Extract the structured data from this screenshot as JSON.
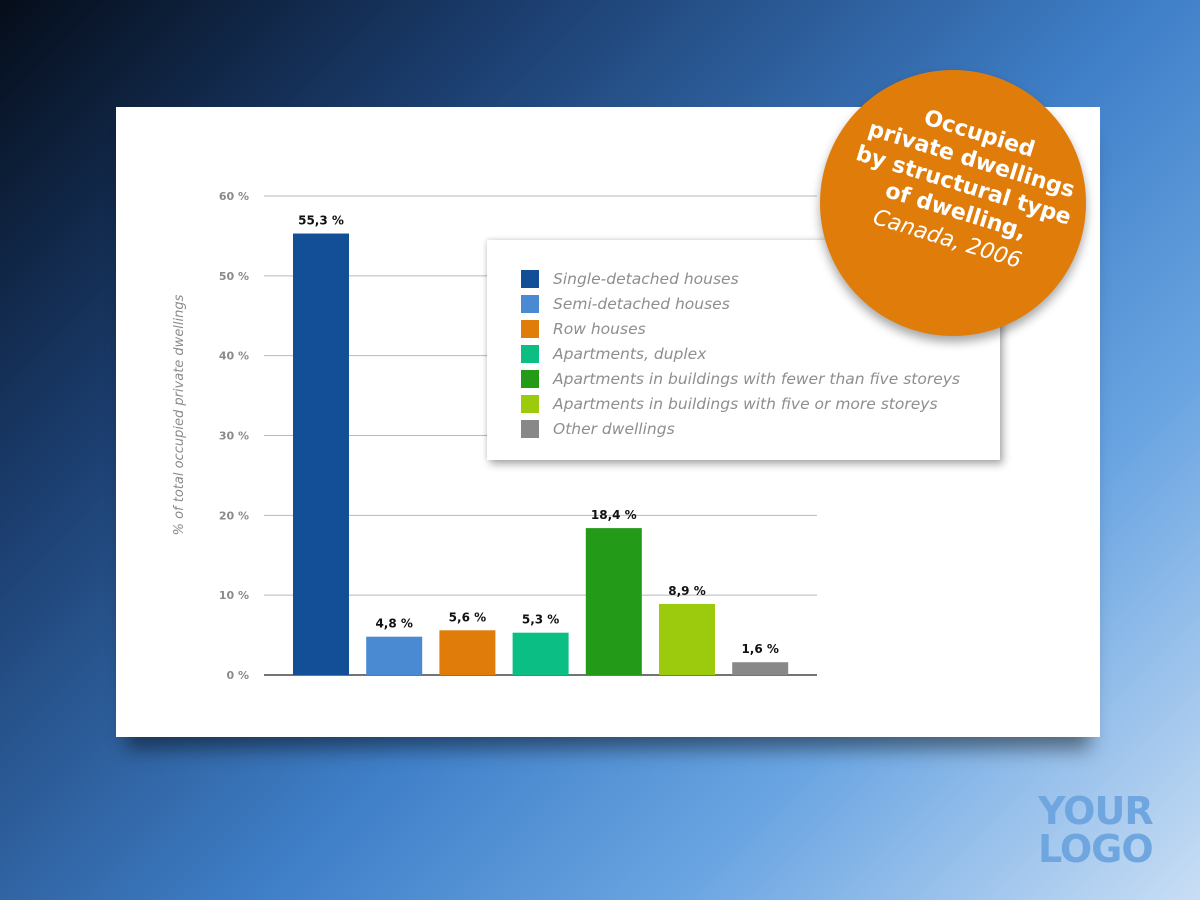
{
  "badge": {
    "title_lines": [
      "Occupied",
      "private dwellings",
      "by structural type",
      "of dwelling,"
    ],
    "subtitle": "Canada, 2006"
  },
  "chart_data": {
    "type": "bar",
    "title": "Occupied private dwellings by structural type of dwelling, Canada, 2006",
    "ylabel": "% of total occupied private dwellings",
    "xlabel": "",
    "ylim": [
      0,
      60
    ],
    "yticks": [
      "0 %",
      "10 %",
      "20 %",
      "30 %",
      "40 %",
      "50 %",
      "60 %"
    ],
    "grid": true,
    "legend_position": "top-right",
    "categories": [
      "Single-detached houses",
      "Semi-detached houses",
      "Row houses",
      "Apartments, duplex",
      "Apartments in buildings with fewer than five storeys",
      "Apartments in buildings with five or more storeys",
      "Other dwellings"
    ],
    "values": [
      55.3,
      4.8,
      5.6,
      5.3,
      18.4,
      8.9,
      1.6
    ],
    "value_labels": [
      "55,3 %",
      "4,8 %",
      "5,6 %",
      "5,3 %",
      "18,4 %",
      "8,9 %",
      "1,6 %"
    ],
    "colors": [
      "#124f96",
      "#4a8ad2",
      "#e07d0a",
      "#0bbf84",
      "#239b19",
      "#9bcb0c",
      "#888888"
    ]
  },
  "logo": {
    "line1": "YOUR",
    "line2": "LOGO"
  },
  "colors": {
    "badge": "#e07d0a",
    "logo": "#6fa6df"
  }
}
